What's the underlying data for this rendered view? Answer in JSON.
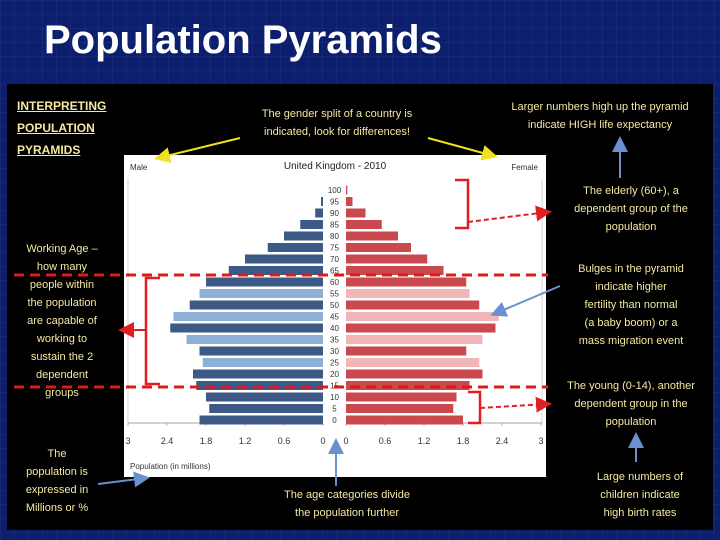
{
  "slide_title": "Population Pyramids",
  "annotations": {
    "interpreting": [
      "INTERPRETING",
      "POPULATION",
      "PYRAMIDS"
    ],
    "gender_split": [
      "The gender split of a country is",
      "indicated, look for differences!"
    ],
    "life_expectancy": [
      "Larger numbers high up the pyramid",
      "indicate HIGH life expectancy"
    ],
    "elderly": [
      "The elderly (60+), a",
      "dependent group of the",
      "population"
    ],
    "working_age": [
      "Working Age –",
      "how many",
      "people within",
      "the population",
      "are capable of",
      "working to",
      "sustain the 2",
      "dependent",
      "groups"
    ],
    "bulges": [
      "Bulges in the pyramid",
      "indicate higher",
      "fertility than normal",
      "(a baby boom) or a",
      "mass migration event"
    ],
    "young": [
      "The young (0-14), another",
      "dependent group in the",
      "population"
    ],
    "population_expressed": [
      "The",
      "population is",
      "expressed in",
      "Millions or %"
    ],
    "age_categories": [
      "The age categories divide",
      "the population further"
    ],
    "birth_rates": [
      "Large numbers of",
      "children indicate",
      "high birth rates"
    ]
  },
  "colors": {
    "background": "#0c1f6e",
    "panel": "#000000",
    "annotation_text": "#f5e9a0",
    "male_dark": "#3c5a85",
    "male_light": "#8fb0d6",
    "female_dark": "#c9494f",
    "female_light": "#f3b6b8",
    "red_arrow": "#e02020",
    "yellow_arrow": "#f0e020",
    "blue_arrow": "#6a90d0",
    "divider": "#e01818"
  },
  "chart_data": {
    "type": "bar",
    "title": "United Kingdom - 2010",
    "left_label": "Male",
    "right_label": "Female",
    "xlabel": "Population (in millions)",
    "age_labels": [
      "0",
      "5",
      "10",
      "15",
      "20",
      "25",
      "30",
      "35",
      "40",
      "45",
      "50",
      "55",
      "60",
      "65",
      "70",
      "75",
      "80",
      "85",
      "90",
      "95",
      "100"
    ],
    "x_ticks": [
      "3",
      "2.4",
      "1.8",
      "1.2",
      "0.6",
      "0",
      "0",
      "0.6",
      "1.2",
      "1.8",
      "2.4",
      "3"
    ],
    "xlim": [
      -3,
      3
    ],
    "series": [
      {
        "name": "Male",
        "values": [
          1.9,
          1.75,
          1.8,
          1.95,
          2.0,
          1.85,
          1.9,
          2.1,
          2.35,
          2.3,
          2.05,
          1.9,
          1.8,
          1.45,
          1.2,
          0.85,
          0.6,
          0.35,
          0.12,
          0.03,
          0.0
        ]
      },
      {
        "name": "Female",
        "values": [
          1.8,
          1.65,
          1.7,
          1.9,
          2.1,
          2.05,
          1.85,
          2.1,
          2.3,
          2.35,
          2.05,
          1.9,
          1.85,
          1.5,
          1.25,
          1.0,
          0.8,
          0.55,
          0.3,
          0.1,
          0.02
        ]
      }
    ]
  }
}
